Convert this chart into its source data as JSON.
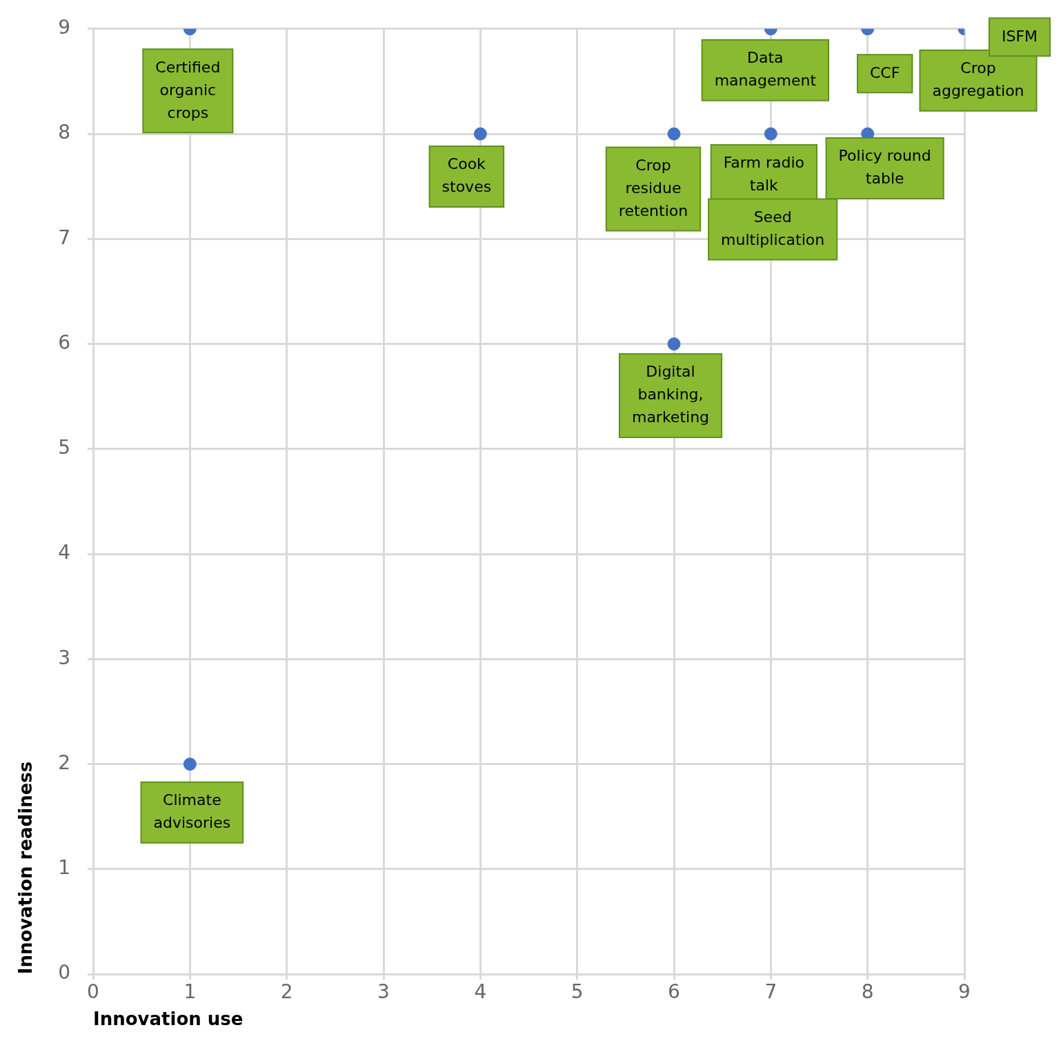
{
  "chart_data": {
    "type": "scatter",
    "xlabel": "Innovation use",
    "ylabel": "Innovation readiness",
    "x": [
      1,
      4,
      6,
      7,
      8,
      7,
      8,
      9,
      6,
      1
    ],
    "values": [
      9,
      8,
      8,
      8,
      8,
      9,
      9,
      9,
      6,
      2
    ],
    "color": "#4472c4",
    "marker": "circle",
    "grid": true,
    "legend": false,
    "xlim": [
      0,
      9
    ],
    "xticks": [
      0,
      1,
      2,
      3,
      4,
      5,
      6,
      7,
      8,
      9
    ],
    "ylim": [
      0,
      9
    ],
    "yticks": [
      0,
      1,
      2,
      3,
      4,
      5,
      6,
      7,
      8,
      9
    ],
    "annotations": [
      {
        "text": "Certified organic crops",
        "x": 1,
        "y": 9
      },
      {
        "text": "Cook stoves",
        "x": 4,
        "y": 8
      },
      {
        "text": "Crop residue retention",
        "x": 6,
        "y": 8
      },
      {
        "text": "Farm radio talk",
        "x": 7,
        "y": 8
      },
      "Seed multiplication",
      {
        "text": "Policy round table",
        "x": 8,
        "y": 8
      },
      {
        "text": "Data management",
        "x": 7,
        "y": 9
      },
      {
        "text": "CCF",
        "x": 8,
        "y": 9
      },
      {
        "text": "Crop aggregation",
        "x": 9,
        "y": 9
      },
      {
        "text": "ISFM",
        "x": 9,
        "y": 9
      },
      {
        "text": "Digital banking, marketing",
        "x": 6,
        "y": 6
      },
      {
        "text": "Climate advisories",
        "x": 1,
        "y": 2
      }
    ]
  }
}
